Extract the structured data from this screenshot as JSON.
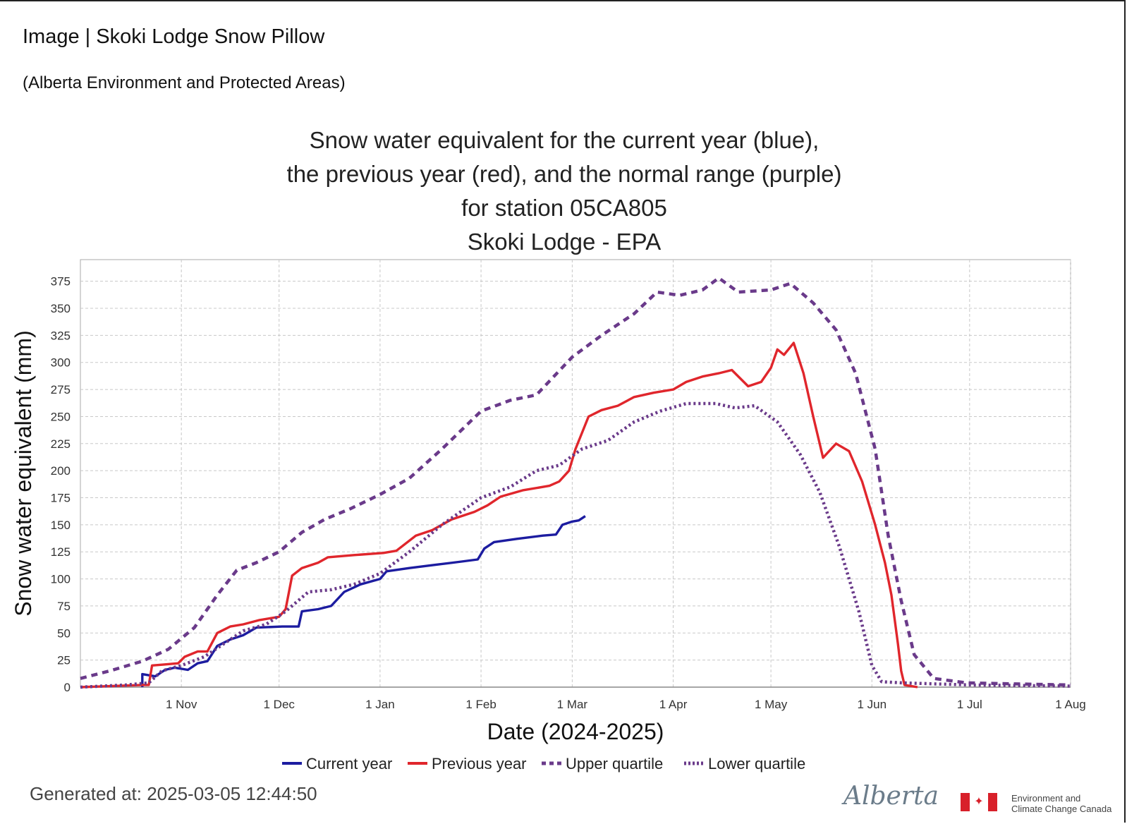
{
  "header": {
    "title": "Image | Skoki Lodge Snow Pillow",
    "source": "(Alberta Environment and Protected Areas)"
  },
  "footer": {
    "generated": "Generated at: 2025-03-05 12:44:50",
    "alberta_logo": "Alberta",
    "eccc_line1": "Environment and",
    "eccc_line2": "Climate Change Canada",
    "flag_icon": "canada-flag-icon"
  },
  "colors": {
    "current": "#1c1ca0",
    "previous": "#e0262c",
    "quartile": "#6a3a8a",
    "grid": "#c8c8c8"
  },
  "chart_data": {
    "type": "line",
    "title_lines": [
      "Snow water equivalent for the current year (blue),",
      "the previous year (red), and the normal range (purple)",
      "for station 05CA805",
      "Skoki Lodge - EPA"
    ],
    "xlabel": "Date (2024-2025)",
    "ylabel": "Snow water equivalent (mm)",
    "ylim": [
      0,
      395
    ],
    "yticks": [
      0,
      25,
      50,
      75,
      100,
      125,
      150,
      175,
      200,
      225,
      250,
      275,
      300,
      325,
      350,
      375
    ],
    "xlim": [
      "2024-10-01",
      "2025-08-01"
    ],
    "xticks": [
      {
        "date": "2024-11-01",
        "label": "1 Nov"
      },
      {
        "date": "2024-12-01",
        "label": "1 Dec"
      },
      {
        "date": "2025-01-01",
        "label": "1 Jan"
      },
      {
        "date": "2025-02-01",
        "label": "1 Feb"
      },
      {
        "date": "2025-03-01",
        "label": "1 Mar"
      },
      {
        "date": "2025-04-01",
        "label": "1 Apr"
      },
      {
        "date": "2025-05-01",
        "label": "1 May"
      },
      {
        "date": "2025-06-01",
        "label": "1 Jun"
      },
      {
        "date": "2025-07-01",
        "label": "1 Jul"
      },
      {
        "date": "2025-08-01",
        "label": "1 Aug"
      }
    ],
    "grid": true,
    "legend_position": "bottom",
    "series": [
      {
        "name": "Current year",
        "style": "solid",
        "color": "#1c1ca0",
        "points": [
          [
            "2024-10-20",
            0
          ],
          [
            "2024-10-20",
            12
          ],
          [
            "2024-10-24",
            10
          ],
          [
            "2024-10-27",
            16
          ],
          [
            "2024-10-30",
            18
          ],
          [
            "2024-11-03",
            16
          ],
          [
            "2024-11-06",
            22
          ],
          [
            "2024-11-09",
            24
          ],
          [
            "2024-11-12",
            38
          ],
          [
            "2024-11-16",
            44
          ],
          [
            "2024-11-20",
            48
          ],
          [
            "2024-11-24",
            55
          ],
          [
            "2024-12-02",
            56
          ],
          [
            "2024-12-07",
            56
          ],
          [
            "2024-12-08",
            70
          ],
          [
            "2024-12-13",
            72
          ],
          [
            "2024-12-17",
            75
          ],
          [
            "2024-12-21",
            88
          ],
          [
            "2024-12-26",
            95
          ],
          [
            "2025-01-01",
            100
          ],
          [
            "2025-01-03",
            107
          ],
          [
            "2025-01-10",
            110
          ],
          [
            "2025-01-18",
            113
          ],
          [
            "2025-01-26",
            116
          ],
          [
            "2025-01-31",
            118
          ],
          [
            "2025-02-02",
            128
          ],
          [
            "2025-02-05",
            134
          ],
          [
            "2025-02-12",
            137
          ],
          [
            "2025-02-20",
            140
          ],
          [
            "2025-02-24",
            141
          ],
          [
            "2025-02-26",
            150
          ],
          [
            "2025-03-01",
            153
          ],
          [
            "2025-03-03",
            154
          ],
          [
            "2025-03-05",
            158
          ]
        ]
      },
      {
        "name": "Previous year",
        "style": "solid",
        "color": "#e0262c",
        "points": [
          [
            "2024-10-01",
            0
          ],
          [
            "2024-10-20",
            2
          ],
          [
            "2024-10-22",
            2
          ],
          [
            "2024-10-23",
            20
          ],
          [
            "2024-10-27",
            21
          ],
          [
            "2024-10-31",
            22
          ],
          [
            "2024-11-02",
            28
          ],
          [
            "2024-11-06",
            33
          ],
          [
            "2024-11-09",
            33
          ],
          [
            "2024-11-12",
            50
          ],
          [
            "2024-11-16",
            56
          ],
          [
            "2024-11-20",
            58
          ],
          [
            "2024-11-25",
            62
          ],
          [
            "2024-12-01",
            65
          ],
          [
            "2024-12-03",
            72
          ],
          [
            "2024-12-05",
            103
          ],
          [
            "2024-12-08",
            110
          ],
          [
            "2024-12-13",
            115
          ],
          [
            "2024-12-16",
            120
          ],
          [
            "2024-12-24",
            122
          ],
          [
            "2025-01-02",
            124
          ],
          [
            "2025-01-06",
            126
          ],
          [
            "2025-01-12",
            140
          ],
          [
            "2025-01-17",
            145
          ],
          [
            "2025-01-23",
            155
          ],
          [
            "2025-01-30",
            162
          ],
          [
            "2025-02-03",
            168
          ],
          [
            "2025-02-07",
            176
          ],
          [
            "2025-02-14",
            182
          ],
          [
            "2025-02-22",
            186
          ],
          [
            "2025-02-25",
            190
          ],
          [
            "2025-02-28",
            200
          ],
          [
            "2025-03-02",
            220
          ],
          [
            "2025-03-06",
            250
          ],
          [
            "2025-03-10",
            256
          ],
          [
            "2025-03-15",
            260
          ],
          [
            "2025-03-20",
            268
          ],
          [
            "2025-03-26",
            272
          ],
          [
            "2025-04-01",
            275
          ],
          [
            "2025-04-05",
            282
          ],
          [
            "2025-04-10",
            287
          ],
          [
            "2025-04-15",
            290
          ],
          [
            "2025-04-19",
            293
          ],
          [
            "2025-04-24",
            278
          ],
          [
            "2025-04-28",
            282
          ],
          [
            "2025-05-01",
            295
          ],
          [
            "2025-05-03",
            312
          ],
          [
            "2025-05-05",
            307
          ],
          [
            "2025-05-08",
            318
          ],
          [
            "2025-05-11",
            290
          ],
          [
            "2025-05-14",
            250
          ],
          [
            "2025-05-17",
            212
          ],
          [
            "2025-05-21",
            225
          ],
          [
            "2025-05-25",
            218
          ],
          [
            "2025-05-29",
            190
          ],
          [
            "2025-06-02",
            150
          ],
          [
            "2025-06-05",
            115
          ],
          [
            "2025-06-07",
            85
          ],
          [
            "2025-06-09",
            40
          ],
          [
            "2025-06-10",
            15
          ],
          [
            "2025-06-11",
            2
          ],
          [
            "2025-06-15",
            0
          ]
        ]
      },
      {
        "name": "Upper quartile",
        "style": "dashed",
        "color": "#6a3a8a",
        "points": [
          [
            "2024-10-01",
            8
          ],
          [
            "2024-10-10",
            15
          ],
          [
            "2024-10-20",
            24
          ],
          [
            "2024-10-28",
            35
          ],
          [
            "2024-11-05",
            55
          ],
          [
            "2024-11-12",
            85
          ],
          [
            "2024-11-18",
            108
          ],
          [
            "2024-11-24",
            115
          ],
          [
            "2024-12-01",
            125
          ],
          [
            "2024-12-08",
            143
          ],
          [
            "2024-12-15",
            155
          ],
          [
            "2024-12-23",
            165
          ],
          [
            "2025-01-01",
            178
          ],
          [
            "2025-01-10",
            193
          ],
          [
            "2025-01-20",
            220
          ],
          [
            "2025-02-01",
            255
          ],
          [
            "2025-02-10",
            265
          ],
          [
            "2025-02-18",
            270
          ],
          [
            "2025-03-01",
            305
          ],
          [
            "2025-03-10",
            325
          ],
          [
            "2025-03-20",
            345
          ],
          [
            "2025-03-27",
            365
          ],
          [
            "2025-04-03",
            362
          ],
          [
            "2025-04-10",
            367
          ],
          [
            "2025-04-15",
            378
          ],
          [
            "2025-04-21",
            365
          ],
          [
            "2025-05-01",
            367
          ],
          [
            "2025-05-07",
            373
          ],
          [
            "2025-05-14",
            355
          ],
          [
            "2025-05-21",
            330
          ],
          [
            "2025-05-27",
            290
          ],
          [
            "2025-06-02",
            220
          ],
          [
            "2025-06-06",
            140
          ],
          [
            "2025-06-10",
            80
          ],
          [
            "2025-06-14",
            30
          ],
          [
            "2025-06-20",
            8
          ],
          [
            "2025-06-30",
            4
          ],
          [
            "2025-07-15",
            3
          ],
          [
            "2025-08-01",
            2
          ]
        ]
      },
      {
        "name": "Lower quartile",
        "style": "dotted",
        "color": "#6a3a8a",
        "points": [
          [
            "2024-10-01",
            0
          ],
          [
            "2024-10-15",
            2
          ],
          [
            "2024-10-22",
            4
          ],
          [
            "2024-10-26",
            15
          ],
          [
            "2024-11-01",
            20
          ],
          [
            "2024-11-08",
            28
          ],
          [
            "2024-11-14",
            40
          ],
          [
            "2024-11-20",
            52
          ],
          [
            "2024-11-27",
            58
          ],
          [
            "2024-12-03",
            70
          ],
          [
            "2024-12-10",
            88
          ],
          [
            "2024-12-17",
            90
          ],
          [
            "2024-12-24",
            95
          ],
          [
            "2025-01-01",
            105
          ],
          [
            "2025-01-10",
            125
          ],
          [
            "2025-01-20",
            150
          ],
          [
            "2025-02-01",
            175
          ],
          [
            "2025-02-10",
            185
          ],
          [
            "2025-02-18",
            200
          ],
          [
            "2025-02-25",
            205
          ],
          [
            "2025-03-04",
            220
          ],
          [
            "2025-03-12",
            228
          ],
          [
            "2025-03-20",
            245
          ],
          [
            "2025-03-28",
            255
          ],
          [
            "2025-04-05",
            262
          ],
          [
            "2025-04-14",
            262
          ],
          [
            "2025-04-20",
            258
          ],
          [
            "2025-04-26",
            260
          ],
          [
            "2025-05-03",
            245
          ],
          [
            "2025-05-10",
            215
          ],
          [
            "2025-05-16",
            180
          ],
          [
            "2025-05-22",
            130
          ],
          [
            "2025-05-28",
            70
          ],
          [
            "2025-06-01",
            20
          ],
          [
            "2025-06-04",
            5
          ],
          [
            "2025-06-10",
            4
          ],
          [
            "2025-07-01",
            2
          ],
          [
            "2025-08-01",
            1
          ]
        ]
      }
    ]
  }
}
